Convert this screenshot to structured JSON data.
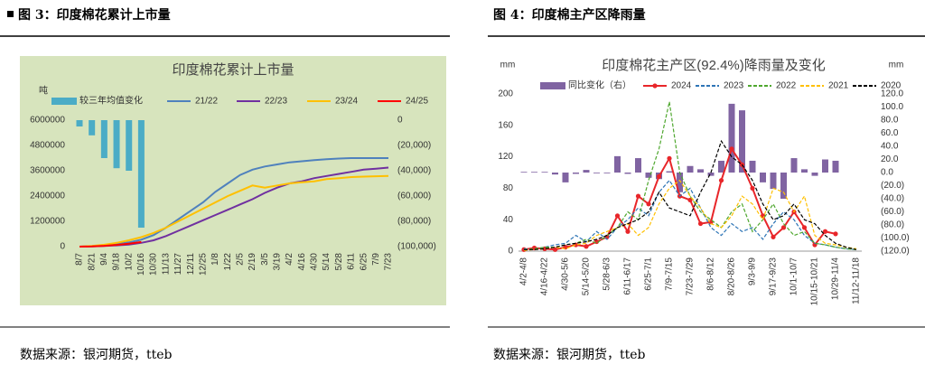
{
  "figures": [
    {
      "caption": "图 3：印度棉花累计上市量",
      "source": "数据来源：银河期货，tteb"
    },
    {
      "caption": "图 4：印度棉主产区降雨量",
      "source": "数据来源：银河期货，tteb"
    }
  ],
  "chart_data": [
    {
      "type": "combo",
      "title": "印度棉花累计上市量",
      "ylabel": "吨",
      "categories": [
        "8/7",
        "8/21",
        "9/4",
        "9/18",
        "10/2",
        "10/16",
        "10/30",
        "11/13",
        "11/27",
        "12/11",
        "12/25",
        "1/8",
        "1/22",
        "2/5",
        "2/19",
        "3/5",
        "3/19",
        "4/2",
        "4/16",
        "4/30",
        "5/14",
        "5/28",
        "6/11",
        "6/25",
        "7/9",
        "7/23"
      ],
      "ylim": [
        0,
        6000000
      ],
      "yticks": [
        0,
        1200000,
        2400000,
        3600000,
        4800000,
        6000000
      ],
      "y2lim": [
        -100000,
        0
      ],
      "y2ticks": [
        0,
        {
          "value": -20000,
          "label": "(20,000)"
        },
        {
          "value": -40000,
          "label": "(40,000)"
        },
        {
          "value": -60000,
          "label": "(60,000)"
        },
        {
          "value": -80000,
          "label": "(80,000)"
        },
        {
          "value": -100000,
          "label": "(100,000)"
        }
      ],
      "grid": false,
      "series": [
        {
          "name": "较三年均值变化",
          "kind": "bar",
          "axis": "y2",
          "color": "#4bacc6",
          "values": [
            -5000,
            -12000,
            -30000,
            -38000,
            -40000,
            -85000,
            null,
            null,
            null,
            null,
            null,
            null,
            null,
            null,
            null,
            null,
            null,
            null,
            null,
            null,
            null,
            null,
            null,
            null,
            null,
            null
          ]
        },
        {
          "name": "21/22",
          "kind": "line",
          "color": "#4f81bd",
          "values": [
            0,
            20000,
            60000,
            120000,
            200000,
            330000,
            550000,
            900000,
            1300000,
            1700000,
            2100000,
            2600000,
            3000000,
            3400000,
            3650000,
            3800000,
            3900000,
            4000000,
            4050000,
            4100000,
            4150000,
            4180000,
            4200000,
            4200000,
            4200000,
            4200000
          ]
        },
        {
          "name": "22/23",
          "kind": "line",
          "color": "#7030a0",
          "values": [
            0,
            10000,
            30000,
            60000,
            100000,
            180000,
            300000,
            500000,
            750000,
            1000000,
            1250000,
            1500000,
            1750000,
            2000000,
            2250000,
            2550000,
            2800000,
            3000000,
            3100000,
            3250000,
            3350000,
            3450000,
            3550000,
            3650000,
            3700000,
            3750000
          ]
        },
        {
          "name": "23/24",
          "kind": "line",
          "color": "#ffc000",
          "values": [
            0,
            30000,
            90000,
            180000,
            300000,
            450000,
            650000,
            900000,
            1200000,
            1500000,
            1800000,
            2100000,
            2400000,
            2650000,
            2900000,
            2800000,
            2900000,
            3000000,
            3050000,
            3100000,
            3200000,
            3250000,
            3300000,
            3320000,
            3340000,
            3350000
          ]
        },
        {
          "name": "24/25",
          "kind": "line",
          "color": "#ff0000",
          "values": [
            0,
            10000,
            40000,
            80000,
            140000,
            220000,
            null,
            null,
            null,
            null,
            null,
            null,
            null,
            null,
            null,
            null,
            null,
            null,
            null,
            null,
            null,
            null,
            null,
            null,
            null,
            null
          ]
        }
      ]
    },
    {
      "type": "combo",
      "title": "印度棉花主产区(92.4%)降雨量及变化",
      "ylabel": "mm",
      "y2label": "mm",
      "categories": [
        "4/2-4/8",
        null,
        "4/16-4/22",
        null,
        "4/30-5/6",
        null,
        "5/14-5/20",
        null,
        "5/28-6/3",
        null,
        "6/11-6/17",
        null,
        "6/25-7/1",
        null,
        "7/9-7/15",
        null,
        "7/23-7/29",
        null,
        "8/6-8/12",
        null,
        "8/20-8/26",
        null,
        "9/3-9/9",
        null,
        "9/17-9/23",
        null,
        "10/1-10/7",
        null,
        "10/15-10/21",
        null,
        "10/29-11/4",
        null,
        "11/12-11/18"
      ],
      "ylim": [
        0,
        200
      ],
      "yticks": [
        0,
        40,
        80,
        120,
        160,
        200
      ],
      "y2lim": [
        -120,
        120
      ],
      "y2ticks": [
        {
          "value": 120,
          "label": "120.0"
        },
        {
          "value": 100,
          "label": "100.0"
        },
        {
          "value": 80,
          "label": "80.0"
        },
        {
          "value": 60,
          "label": "60.0"
        },
        {
          "value": 40,
          "label": "40.0"
        },
        {
          "value": 20,
          "label": "20.0"
        },
        {
          "value": 0,
          "label": "0.0"
        },
        {
          "value": -20,
          "label": "(20.0)"
        },
        {
          "value": -40,
          "label": "(40.0)"
        },
        {
          "value": -60,
          "label": "(60.0)"
        },
        {
          "value": -80,
          "label": "(80.0)"
        },
        {
          "value": -100,
          "label": "(100.0)"
        },
        {
          "value": -120,
          "label": "(120.0)"
        }
      ],
      "grid": false,
      "series": [
        {
          "name": "同比变化（右）",
          "kind": "bar",
          "axis": "y2",
          "color": "#8064a2",
          "values": [
            1,
            1,
            1,
            -3,
            -15,
            -2,
            4,
            0,
            0,
            25,
            -2,
            22,
            -8,
            -10,
            2,
            -30,
            10,
            5,
            -5,
            18,
            105,
            95,
            18,
            -15,
            -25,
            -40,
            22,
            5,
            -5,
            20,
            18,
            null,
            null
          ]
        },
        {
          "name": "2024",
          "kind": "line",
          "color": "#e8262a",
          "marker": "circle",
          "values": [
            2,
            4,
            3,
            2,
            5,
            8,
            6,
            12,
            18,
            45,
            25,
            70,
            60,
            95,
            118,
            70,
            65,
            35,
            37,
            90,
            130,
            110,
            80,
            45,
            18,
            30,
            50,
            30,
            8,
            25,
            22,
            null,
            null
          ]
        },
        {
          "name": "2023",
          "kind": "line",
          "color": "#2e75b6",
          "dashed": true,
          "values": [
            3,
            2,
            5,
            8,
            10,
            20,
            12,
            25,
            15,
            30,
            40,
            55,
            45,
            75,
            90,
            70,
            80,
            55,
            30,
            20,
            35,
            25,
            30,
            15,
            35,
            50,
            40,
            20,
            10,
            8,
            5,
            3,
            2
          ]
        },
        {
          "name": "2022",
          "kind": "line",
          "color": "#4ea72e",
          "dashed": true,
          "values": [
            2,
            3,
            5,
            5,
            8,
            10,
            15,
            10,
            20,
            30,
            50,
            40,
            90,
            130,
            190,
            100,
            70,
            50,
            40,
            30,
            50,
            60,
            25,
            40,
            60,
            35,
            20,
            25,
            10,
            8,
            5,
            3,
            2
          ]
        },
        {
          "name": "2021",
          "kind": "line",
          "color": "#ffc000",
          "dashed": true,
          "values": [
            1,
            2,
            3,
            5,
            3,
            8,
            10,
            20,
            25,
            30,
            35,
            20,
            30,
            60,
            80,
            90,
            70,
            55,
            35,
            30,
            45,
            70,
            60,
            40,
            80,
            75,
            50,
            70,
            20,
            10,
            8,
            5,
            3
          ]
        },
        {
          "name": "2020",
          "kind": "line",
          "color": "#000000",
          "dashed": true,
          "values": [
            2,
            2,
            3,
            5,
            8,
            10,
            12,
            15,
            20,
            30,
            35,
            40,
            50,
            75,
            55,
            50,
            45,
            75,
            100,
            140,
            120,
            110,
            90,
            60,
            40,
            45,
            60,
            40,
            35,
            20,
            10,
            5,
            2
          ]
        }
      ]
    }
  ]
}
